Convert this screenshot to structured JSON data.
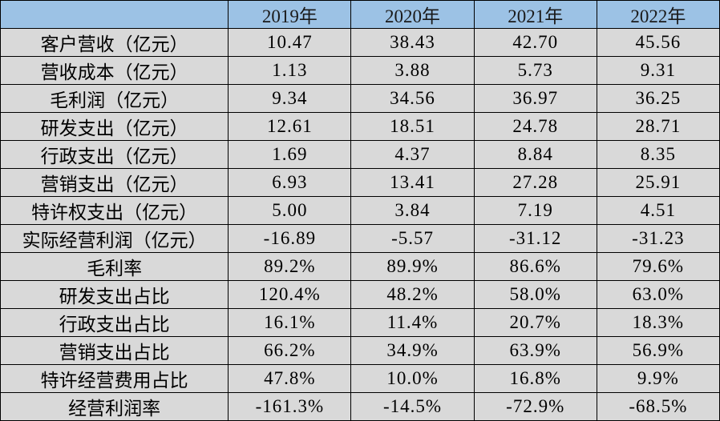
{
  "colors": {
    "header_bg": "#9CC2E5",
    "row_bg": "#D9D9D9",
    "border": "#000000",
    "text_black": "#000000",
    "negative_red": "#EE2125",
    "highlight_green": "#2DBE71"
  },
  "chart_data": {
    "type": "table",
    "corner_label": "",
    "columns": [
      "2019年",
      "2020年",
      "2021年",
      "2022年"
    ],
    "rows": [
      {
        "label": "客户营收（亿元）",
        "values": [
          "10.47",
          "38.43",
          "42.70",
          "45.56"
        ],
        "value_colors": [
          "black",
          "black",
          "black",
          "black"
        ]
      },
      {
        "label": "营收成本（亿元）",
        "values": [
          "1.13",
          "3.88",
          "5.73",
          "9.31"
        ],
        "value_colors": [
          "black",
          "black",
          "black",
          "black"
        ]
      },
      {
        "label": "毛利润（亿元）",
        "values": [
          "9.34",
          "34.56",
          "36.97",
          "36.25"
        ],
        "value_colors": [
          "black",
          "black",
          "black",
          "green"
        ]
      },
      {
        "label": "研发支出（亿元）",
        "values": [
          "12.61",
          "18.51",
          "24.78",
          "28.71"
        ],
        "value_colors": [
          "black",
          "black",
          "black",
          "black"
        ]
      },
      {
        "label": "行政支出（亿元）",
        "values": [
          "1.69",
          "4.37",
          "8.84",
          "8.35"
        ],
        "value_colors": [
          "black",
          "black",
          "red",
          "red"
        ]
      },
      {
        "label": "营销支出（亿元）",
        "values": [
          "6.93",
          "13.41",
          "27.28",
          "25.91"
        ],
        "value_colors": [
          "black",
          "black",
          "red",
          "red"
        ]
      },
      {
        "label": "特许权支出（亿元）",
        "values": [
          "5.00",
          "3.84",
          "7.19",
          "4.51"
        ],
        "value_colors": [
          "black",
          "black",
          "black",
          "black"
        ]
      },
      {
        "label": "实际经营利润（亿元）",
        "values": [
          "-16.89",
          "-5.57",
          "-31.12",
          "-31.23"
        ],
        "value_colors": [
          "black",
          "black",
          "red",
          "red"
        ]
      },
      {
        "label": "毛利率",
        "values": [
          "89.2%",
          "89.9%",
          "86.6%",
          "79.6%"
        ],
        "value_colors": [
          "black",
          "black",
          "black",
          "green"
        ]
      },
      {
        "label": "研发支出占比",
        "values": [
          "120.4%",
          "48.2%",
          "58.0%",
          "63.0%"
        ],
        "value_colors": [
          "black",
          "black",
          "red",
          "red"
        ]
      },
      {
        "label": "行政支出占比",
        "values": [
          "16.1%",
          "11.4%",
          "20.7%",
          "18.3%"
        ],
        "value_colors": [
          "black",
          "black",
          "red",
          "red"
        ]
      },
      {
        "label": "营销支出占比",
        "values": [
          "66.2%",
          "34.9%",
          "63.9%",
          "56.9%"
        ],
        "value_colors": [
          "black",
          "black",
          "red",
          "red"
        ]
      },
      {
        "label": "特许经营费用占比",
        "values": [
          "47.8%",
          "10.0%",
          "16.8%",
          "9.9%"
        ],
        "value_colors": [
          "black",
          "black",
          "black",
          "black"
        ]
      },
      {
        "label": "经营利润率",
        "values": [
          "-161.3%",
          "-14.5%",
          "-72.9%",
          "-68.5%"
        ],
        "value_colors": [
          "black",
          "black",
          "red",
          "red"
        ]
      }
    ]
  }
}
